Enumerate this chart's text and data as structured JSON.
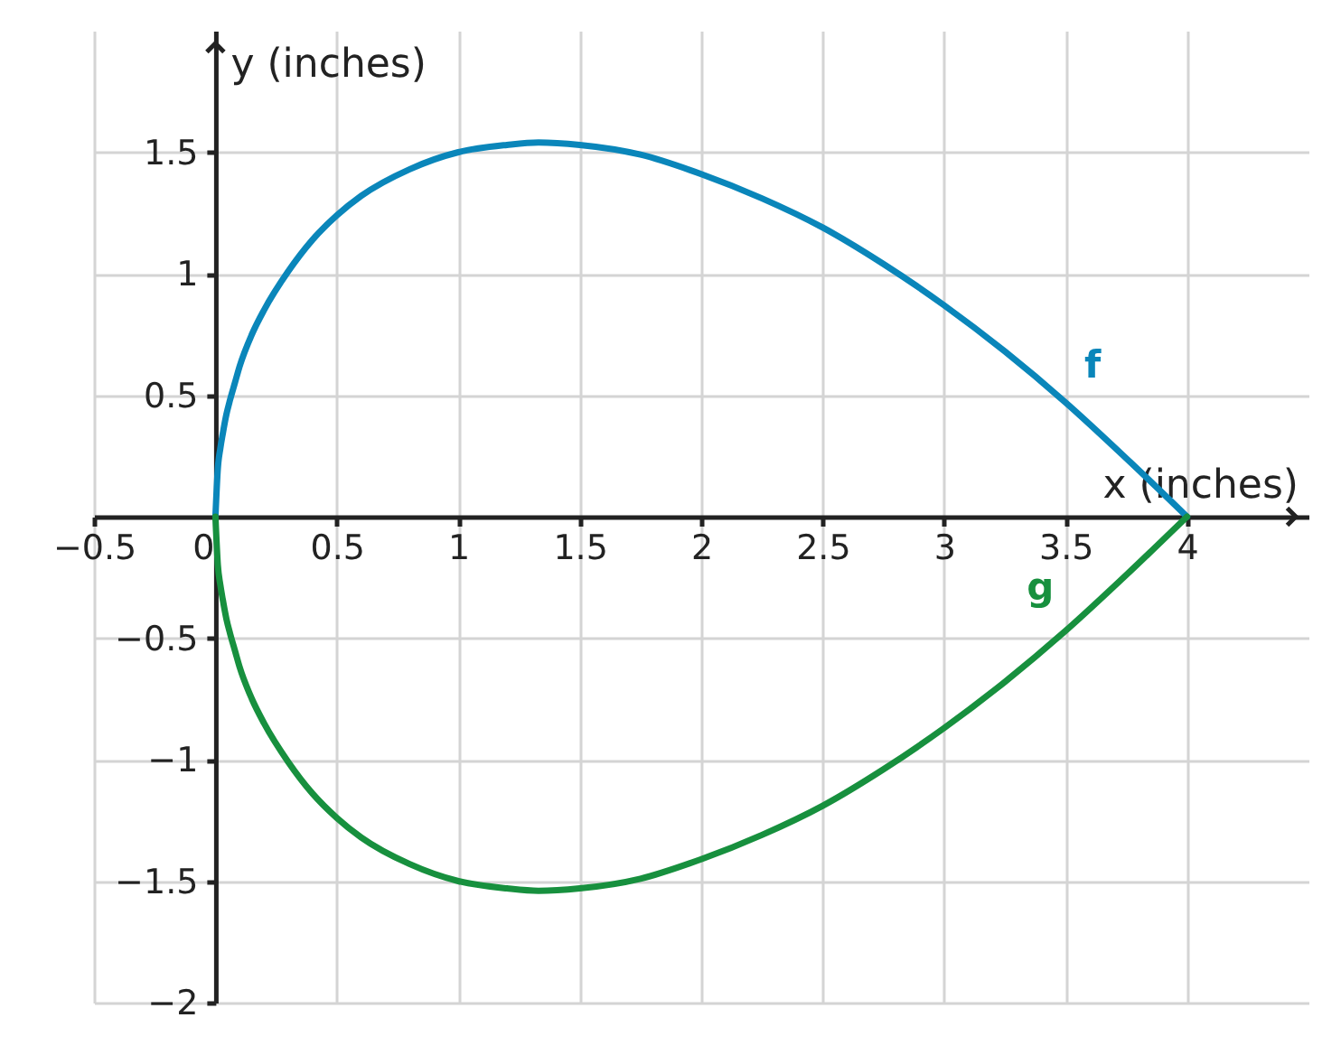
{
  "chart_data": {
    "type": "line",
    "xlabel": "x (inches)",
    "ylabel": "y (inches)",
    "x": [
      0,
      0.01,
      0.02,
      0.03,
      0.045,
      0.06,
      0.08,
      0.1,
      0.15,
      0.2,
      0.3,
      0.4,
      0.5,
      0.6,
      0.8,
      1,
      1.2,
      1.33,
      1.5,
      1.75,
      2,
      2.25,
      2.5,
      2.75,
      3,
      3.25,
      3.5,
      3.75,
      4
    ],
    "series": [
      {
        "name": "f",
        "color": "#0a86ba",
        "values": [
          0,
          0.2,
          0.28,
          0.34,
          0.42,
          0.48,
          0.55,
          0.62,
          0.75,
          0.85,
          1.01,
          1.14,
          1.24,
          1.32,
          1.43,
          1.5,
          1.53,
          1.54,
          1.53,
          1.49,
          1.41,
          1.31,
          1.19,
          1.04,
          0.87,
          0.68,
          0.47,
          0.24,
          0
        ]
      },
      {
        "name": "g",
        "color": "#17903e",
        "values": [
          0,
          -0.2,
          -0.28,
          -0.34,
          -0.42,
          -0.48,
          -0.55,
          -0.62,
          -0.75,
          -0.85,
          -1.01,
          -1.14,
          -1.24,
          -1.32,
          -1.43,
          -1.5,
          -1.53,
          -1.54,
          -1.53,
          -1.49,
          -1.41,
          -1.31,
          -1.19,
          -1.04,
          -0.87,
          -0.68,
          -0.47,
          -0.24,
          0
        ]
      }
    ],
    "xlim": [
      -0.5,
      4.5
    ],
    "ylim": [
      -2,
      2
    ],
    "xticks": [
      {
        "value": -0.5,
        "label": "−0.5"
      },
      0,
      0.5,
      1,
      1.5,
      2,
      2.5,
      3,
      3.5,
      4
    ],
    "yticks": [
      {
        "value": -2,
        "label": "−2"
      },
      {
        "value": -1.5,
        "label": "−1.5"
      },
      {
        "value": -1,
        "label": "−1"
      },
      {
        "value": -0.5,
        "label": "−0.5"
      },
      0.5,
      1,
      1.5
    ],
    "grid": true
  }
}
